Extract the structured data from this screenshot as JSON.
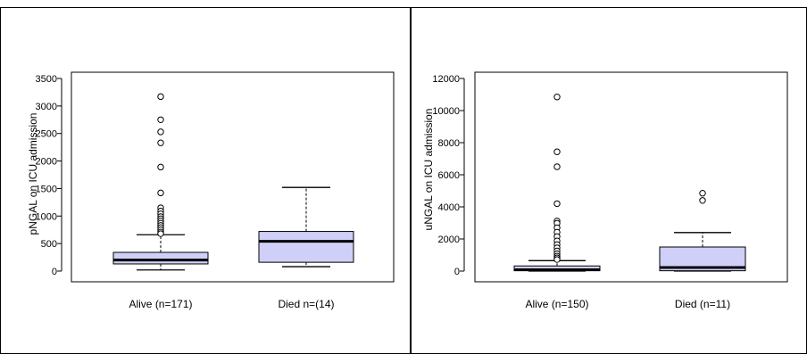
{
  "chart_data": [
    {
      "type": "boxplot",
      "ylabel": "pNGAL on ICU admission",
      "ylim": [
        0,
        3500
      ],
      "yticks": [
        0,
        500,
        1000,
        1500,
        2000,
        2500,
        3000,
        3500
      ],
      "ytick_labels": [
        "0",
        "500",
        "1000",
        "1500",
        "2000",
        "2500",
        "3000",
        "3500"
      ],
      "categories": [
        "Alive (n=171)",
        "Died n=(14)"
      ],
      "boxes": [
        {
          "whisker_low": 20,
          "q1": 130,
          "median": 200,
          "q3": 340,
          "whisker_high": 660,
          "outliers": [
            3170,
            2750,
            2530,
            2330,
            1890,
            1420,
            1150,
            1090,
            1040,
            990,
            950,
            910,
            870,
            830,
            790,
            750,
            710,
            680
          ]
        },
        {
          "whisker_low": 80,
          "q1": 160,
          "median": 540,
          "q3": 720,
          "whisker_high": 1520,
          "outliers": []
        }
      ],
      "box_fill": "#cfcff7",
      "box_stroke": "#000000"
    },
    {
      "type": "boxplot",
      "ylabel": "uNGAL on ICU admission",
      "ylim": [
        0,
        12000
      ],
      "yticks": [
        0,
        2000,
        4000,
        6000,
        8000,
        10000,
        12000
      ],
      "ytick_labels": [
        "0",
        "2000",
        "4000",
        "6000",
        "8000",
        "10000",
        "12000"
      ],
      "categories": [
        "Alive (n=150)",
        "Died (n=11)"
      ],
      "boxes": [
        {
          "whisker_low": 0,
          "q1": 20,
          "median": 80,
          "q3": 320,
          "whisker_high": 650,
          "outliers": [
            10850,
            7430,
            6500,
            4200,
            3120,
            2980,
            2700,
            2420,
            2150,
            1880,
            1650,
            1450,
            1250,
            1080,
            930,
            820,
            720
          ]
        },
        {
          "whisker_low": 0,
          "q1": 20,
          "median": 220,
          "q3": 1500,
          "whisker_high": 2400,
          "outliers": [
            4850,
            4400
          ]
        }
      ],
      "box_fill": "#cfcff7",
      "box_stroke": "#000000"
    }
  ]
}
